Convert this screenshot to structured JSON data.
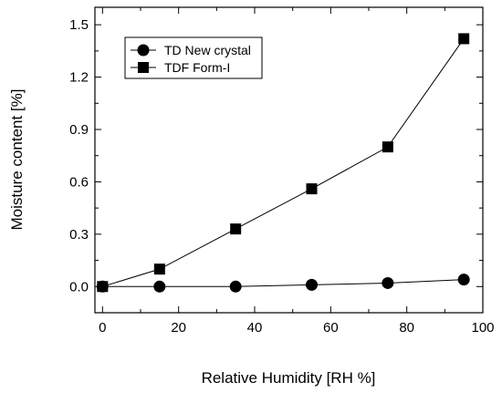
{
  "chart_data": {
    "type": "line",
    "title": "",
    "xlabel": "Relative Humidity [RH %]",
    "ylabel": "Moisture content [%]",
    "xlim": [
      -2,
      100
    ],
    "ylim": [
      -0.15,
      1.6
    ],
    "x_ticks": [
      0,
      20,
      40,
      60,
      80,
      100
    ],
    "x_tick_labels": [
      "0",
      "20",
      "40",
      "60",
      "80",
      "100"
    ],
    "y_ticks": [
      0.0,
      0.3,
      0.6,
      0.9,
      1.2,
      1.5
    ],
    "y_tick_labels": [
      "0.0",
      "0.3",
      "0.6",
      "0.9",
      "1.2",
      "1.5"
    ],
    "grid": false,
    "legend_position": "top-left",
    "series": [
      {
        "name": "TD New crystal",
        "marker": "circle",
        "color": "#000000",
        "x": [
          0,
          15,
          35,
          55,
          75,
          95
        ],
        "y": [
          0.0,
          0.0,
          0.0,
          0.01,
          0.02,
          0.04
        ]
      },
      {
        "name": "TDF Form-I",
        "marker": "square",
        "color": "#000000",
        "x": [
          0,
          15,
          35,
          55,
          75,
          95
        ],
        "y": [
          0.0,
          0.1,
          0.33,
          0.56,
          0.8,
          1.42
        ]
      }
    ]
  }
}
